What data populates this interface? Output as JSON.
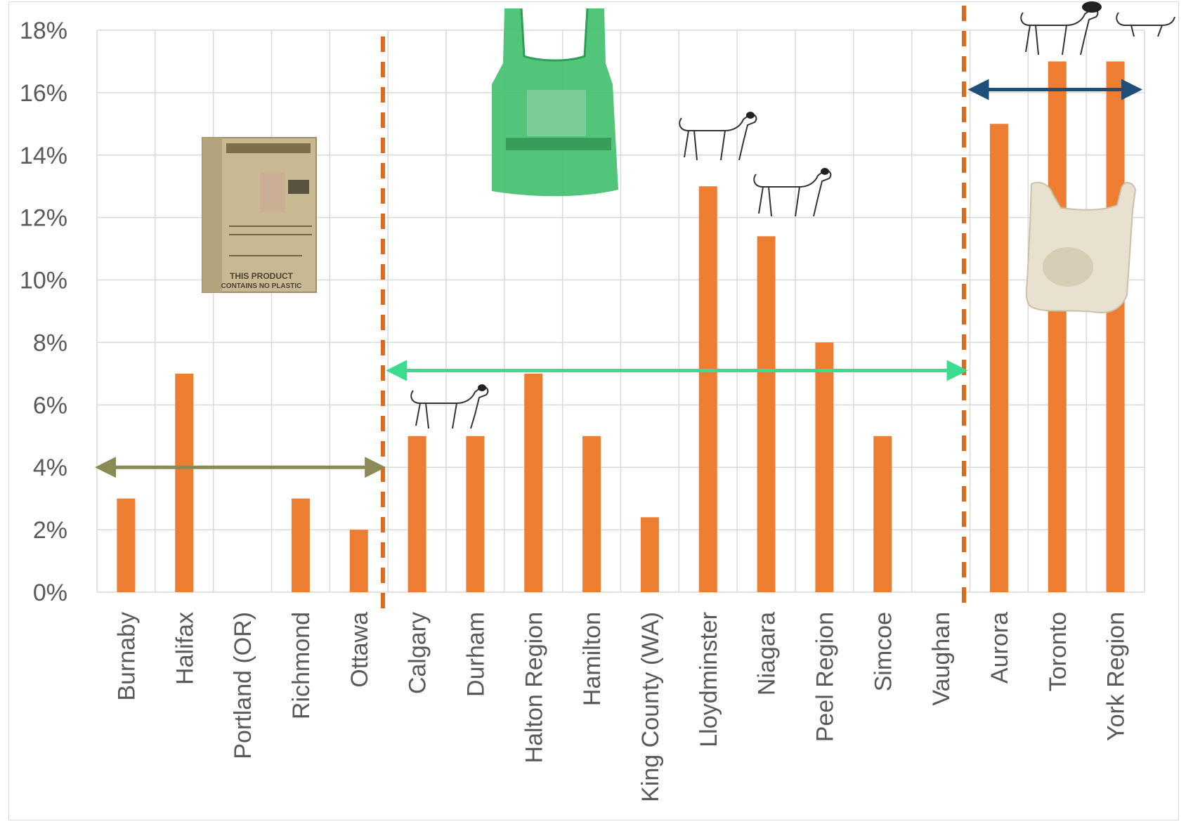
{
  "chart_data": {
    "type": "bar",
    "title": "",
    "xlabel": "",
    "ylabel": "",
    "ylim": [
      0,
      0.18
    ],
    "y_ticks": [
      "0%",
      "2%",
      "4%",
      "6%",
      "8%",
      "10%",
      "12%",
      "14%",
      "16%",
      "18%"
    ],
    "grid": true,
    "bar_color": "#ED7D31",
    "categories": [
      "Burnaby",
      "Halifax",
      "Portland (OR)",
      "Richmond",
      "Ottawa",
      "Calgary",
      "Durham",
      "Halton Region",
      "Hamilton",
      "King County (WA)",
      "Lloydminster",
      "Niagara",
      "Peel Region",
      "Simcoe",
      "Vaughan",
      "Aurora",
      "Toronto",
      "York Region"
    ],
    "values": [
      0.03,
      0.07,
      0,
      0.03,
      0.02,
      0.05,
      0.05,
      0.07,
      0.05,
      0.024,
      0.13,
      0.114,
      0.08,
      0.05,
      0,
      0.15,
      0.17,
      0.17
    ],
    "groups": [
      {
        "from": "Burnaby",
        "to": "Ottawa",
        "arrow_color": "#8B8A55",
        "arrow_value": 0.04,
        "image": "paper-bag-icon"
      },
      {
        "from": "Calgary",
        "to": "Vaughan",
        "arrow_color": "#3DDB8F",
        "arrow_value": 0.071,
        "image": "green-plastic-bag-icon"
      },
      {
        "from": "Aurora",
        "to": "York Region",
        "arrow_color": "#1F4E79",
        "arrow_value": 0.161,
        "image": "white-plastic-bag-icon"
      }
    ],
    "divider_color": "#E06A1B",
    "decorations": [
      "dog-icon",
      "dog-icon",
      "dog-icon",
      "dog-icon",
      "dog-icon"
    ]
  },
  "image_text": {
    "paper_bag_lines": [
      "THIS PRODUCT",
      "CONTAINS NO PLASTIC"
    ]
  }
}
